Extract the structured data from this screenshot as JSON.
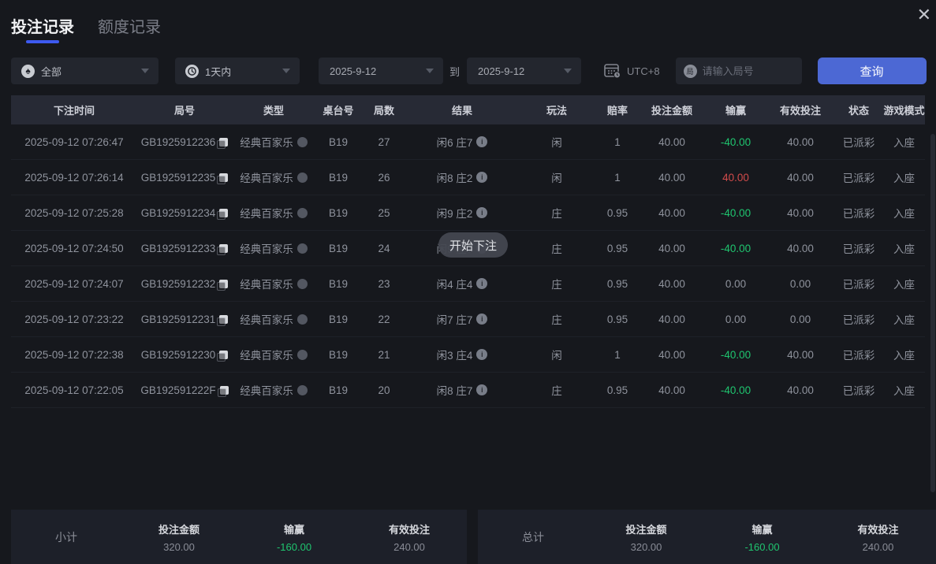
{
  "window": {
    "close_icon": "✕"
  },
  "tabs": [
    {
      "label": "投注记录",
      "active": true
    },
    {
      "label": "额度记录",
      "active": false
    }
  ],
  "filters": {
    "category": {
      "value": "全部",
      "icon": "spade-icon",
      "icon_glyph": "♠"
    },
    "range": {
      "value": "1天内",
      "icon": "clock-icon"
    },
    "date_from": "2025-9-12",
    "to_label": "到",
    "date_to": "2025-9-12",
    "timezone": "UTC+8",
    "search": {
      "placeholder": "请输入局号",
      "icon_glyph": "局"
    },
    "query_button": "查询"
  },
  "table": {
    "columns": [
      "下注时间",
      "局号",
      "类型",
      "桌台号",
      "局数",
      "结果",
      "玩法",
      "赔率",
      "投注金额",
      "输赢",
      "有效投注",
      "状态",
      "游戏模式"
    ],
    "rows": [
      {
        "time": "2025-09-12 07:26:47",
        "game_no": "GB1925912236",
        "type": "经典百家乐",
        "table_no": "B19",
        "round": "27",
        "result": "闲6 庄7",
        "play": "闲",
        "odds": "1",
        "bet": "40.00",
        "winloss": "-40.00",
        "winloss_state": "loss",
        "valid": "40.00",
        "status": "已派彩",
        "mode": "入座"
      },
      {
        "time": "2025-09-12 07:26:14",
        "game_no": "GB1925912235",
        "type": "经典百家乐",
        "table_no": "B19",
        "round": "26",
        "result": "闲8 庄2",
        "play": "闲",
        "odds": "1",
        "bet": "40.00",
        "winloss": "40.00",
        "winloss_state": "win",
        "valid": "40.00",
        "status": "已派彩",
        "mode": "入座"
      },
      {
        "time": "2025-09-12 07:25:28",
        "game_no": "GB1925912234",
        "type": "经典百家乐",
        "table_no": "B19",
        "round": "25",
        "result": "闲9 庄2",
        "play": "庄",
        "odds": "0.95",
        "bet": "40.00",
        "winloss": "-40.00",
        "winloss_state": "loss",
        "valid": "40.00",
        "status": "已派彩",
        "mode": "入座"
      },
      {
        "time": "2025-09-12 07:24:50",
        "game_no": "GB1925912233",
        "type": "经典百家乐",
        "table_no": "B19",
        "round": "24",
        "result": "闲9 庄7",
        "play": "庄",
        "odds": "0.95",
        "bet": "40.00",
        "winloss": "-40.00",
        "winloss_state": "loss",
        "valid": "40.00",
        "status": "已派彩",
        "mode": "入座"
      },
      {
        "time": "2025-09-12 07:24:07",
        "game_no": "GB1925912232",
        "type": "经典百家乐",
        "table_no": "B19",
        "round": "23",
        "result": "闲4 庄4",
        "play": "庄",
        "odds": "0.95",
        "bet": "40.00",
        "winloss": "0.00",
        "winloss_state": "zero",
        "valid": "0.00",
        "status": "已派彩",
        "mode": "入座"
      },
      {
        "time": "2025-09-12 07:23:22",
        "game_no": "GB1925912231",
        "type": "经典百家乐",
        "table_no": "B19",
        "round": "22",
        "result": "闲7 庄7",
        "play": "庄",
        "odds": "0.95",
        "bet": "40.00",
        "winloss": "0.00",
        "winloss_state": "zero",
        "valid": "0.00",
        "status": "已派彩",
        "mode": "入座"
      },
      {
        "time": "2025-09-12 07:22:38",
        "game_no": "GB1925912230",
        "type": "经典百家乐",
        "table_no": "B19",
        "round": "21",
        "result": "闲3 庄4",
        "play": "闲",
        "odds": "1",
        "bet": "40.00",
        "winloss": "-40.00",
        "winloss_state": "loss",
        "valid": "40.00",
        "status": "已派彩",
        "mode": "入座"
      },
      {
        "time": "2025-09-12 07:22:05",
        "game_no": "GB192591222F",
        "type": "经典百家乐",
        "table_no": "B19",
        "round": "20",
        "result": "闲8 庄7",
        "play": "庄",
        "odds": "0.95",
        "bet": "40.00",
        "winloss": "-40.00",
        "winloss_state": "loss",
        "valid": "40.00",
        "status": "已派彩",
        "mode": "入座"
      }
    ]
  },
  "toast": {
    "text": "开始下注"
  },
  "summary": {
    "subtotal": {
      "label": "小计",
      "bet_label": "投注金额",
      "bet": "320.00",
      "winloss_label": "输赢",
      "winloss": "-160.00",
      "valid_label": "有效投注",
      "valid": "240.00"
    },
    "total": {
      "label": "总计",
      "bet_label": "投注金额",
      "bet": "320.00",
      "winloss_label": "输赢",
      "winloss": "-160.00",
      "valid_label": "有效投注",
      "valid": "240.00"
    }
  },
  "colors": {
    "accent_blue": "#4c68d4",
    "loss_green": "#1fc56f",
    "win_red": "#d24b4b",
    "tab_underline": "#3d5af0"
  }
}
